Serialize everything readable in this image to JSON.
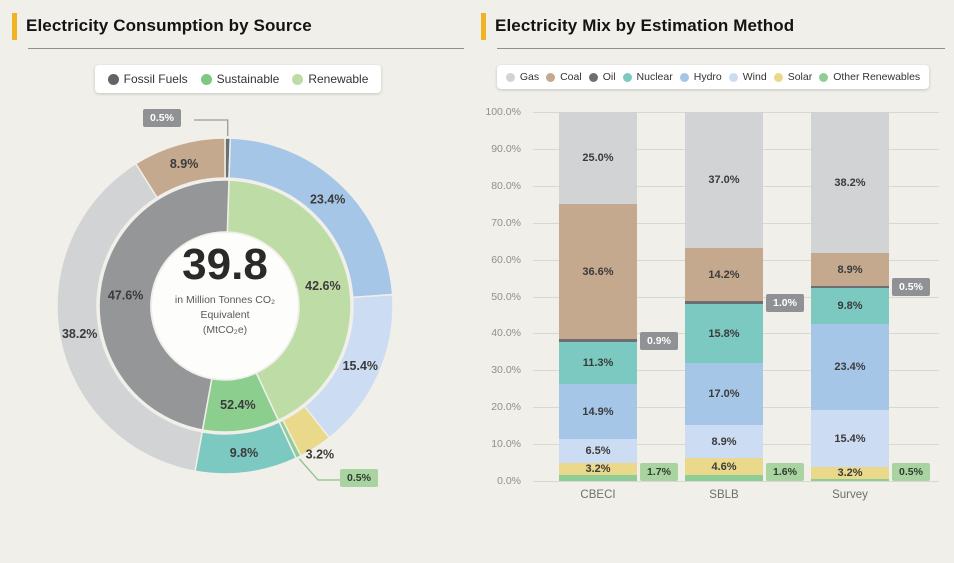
{
  "page": {
    "background": "#f0efe9",
    "accent_color": "#f0b323"
  },
  "left_panel": {
    "title": "Electricity Consumption by Source",
    "legend": [
      {
        "label": "Fossil Fuels",
        "color": "#636466"
      },
      {
        "label": "Sustainable",
        "color": "#7dc981"
      },
      {
        "label": "Renewable",
        "color": "#bedca6"
      }
    ],
    "center": {
      "value": "39.8",
      "unit_lines": [
        "in Million Tonnes CO₂",
        "Equivalent",
        "(MtCO₂e)"
      ]
    }
  },
  "right_panel": {
    "title": "Electricity Mix by Estimation Method",
    "legend": [
      {
        "label": "Gas",
        "color": "#d2d3d4"
      },
      {
        "label": "Coal",
        "color": "#c5a98e"
      },
      {
        "label": "Oil",
        "color": "#6d6e71"
      },
      {
        "label": "Nuclear",
        "color": "#7bc9c0"
      },
      {
        "label": "Hydro",
        "color": "#a6c6e8"
      },
      {
        "label": "Wind",
        "color": "#cbdcf3"
      },
      {
        "label": "Solar",
        "color": "#ead88b"
      },
      {
        "label": "Other Renewables",
        "color": "#8fcd97"
      }
    ]
  },
  "chart_data": [
    {
      "type": "pie",
      "subtype": "two-level-donut",
      "title": "Electricity Consumption by Source",
      "center_value": 39.8,
      "center_unit": "in Million Tonnes CO₂ Equivalent (MtCO₂e)",
      "inner_start_offset_pct": 0.5,
      "inner_ring": [
        {
          "name": "Renewable",
          "display_pct": 42.6,
          "arc_pct": 42.5,
          "color": "#bedca6"
        },
        {
          "name": "Sustainable",
          "display_pct": 52.4,
          "arc_pct": 9.8,
          "color": "#8bce8e"
        },
        {
          "name": "Fossil Fuels",
          "display_pct": 47.6,
          "arc_pct": 47.6,
          "color": "#949698"
        }
      ],
      "outer_ring": [
        {
          "name": "Oil",
          "value_pct": 0.5,
          "color": "#6d6e71",
          "callout": "gray"
        },
        {
          "name": "Hydro",
          "value_pct": 23.4,
          "color": "#a6c6e8"
        },
        {
          "name": "Wind",
          "value_pct": 15.4,
          "color": "#cbdcf3"
        },
        {
          "name": "Solar",
          "value_pct": 3.2,
          "color": "#ead88b",
          "label_outside": true
        },
        {
          "name": "Other Renewables",
          "value_pct": 0.5,
          "color": "#8fcd97",
          "callout": "green"
        },
        {
          "name": "Nuclear",
          "value_pct": 9.8,
          "color": "#7bc9c0"
        },
        {
          "name": "Gas",
          "value_pct": 38.2,
          "color": "#d2d3d4"
        },
        {
          "name": "Coal",
          "value_pct": 8.9,
          "color": "#c5a98e"
        }
      ]
    },
    {
      "type": "bar",
      "subtype": "stacked-100pct",
      "title": "Electricity Mix by Estimation Method",
      "categories": [
        "CBECI",
        "SBLB",
        "Survey"
      ],
      "y_ticks": [
        "100.0%",
        "90.0%",
        "80.0%",
        "70.0%",
        "60.0%",
        "50.0%",
        "40.0%",
        "30.0%",
        "20.0%",
        "10.0%",
        "0.0%"
      ],
      "ylim": [
        0,
        100
      ],
      "grid": true,
      "legend_position": "top",
      "series": [
        {
          "name": "Gas",
          "color": "#d2d3d4",
          "values": [
            25.0,
            37.0,
            38.2
          ]
        },
        {
          "name": "Coal",
          "color": "#c5a98e",
          "values": [
            36.6,
            14.2,
            8.9
          ]
        },
        {
          "name": "Oil",
          "color": "#6d6e71",
          "values": [
            0.9,
            1.0,
            0.5
          ],
          "callout": "gray"
        },
        {
          "name": "Nuclear",
          "color": "#7bc9c0",
          "values": [
            11.3,
            15.8,
            9.8
          ]
        },
        {
          "name": "Hydro",
          "color": "#a6c6e8",
          "values": [
            14.9,
            17.0,
            23.4
          ]
        },
        {
          "name": "Wind",
          "color": "#cbdcf3",
          "values": [
            6.5,
            8.9,
            15.4
          ]
        },
        {
          "name": "Solar",
          "color": "#ead88b",
          "values": [
            3.2,
            4.6,
            3.2
          ]
        },
        {
          "name": "Other Renewables",
          "color": "#8fcd97",
          "values": [
            1.7,
            1.6,
            0.5
          ],
          "callout": "green"
        }
      ]
    }
  ]
}
